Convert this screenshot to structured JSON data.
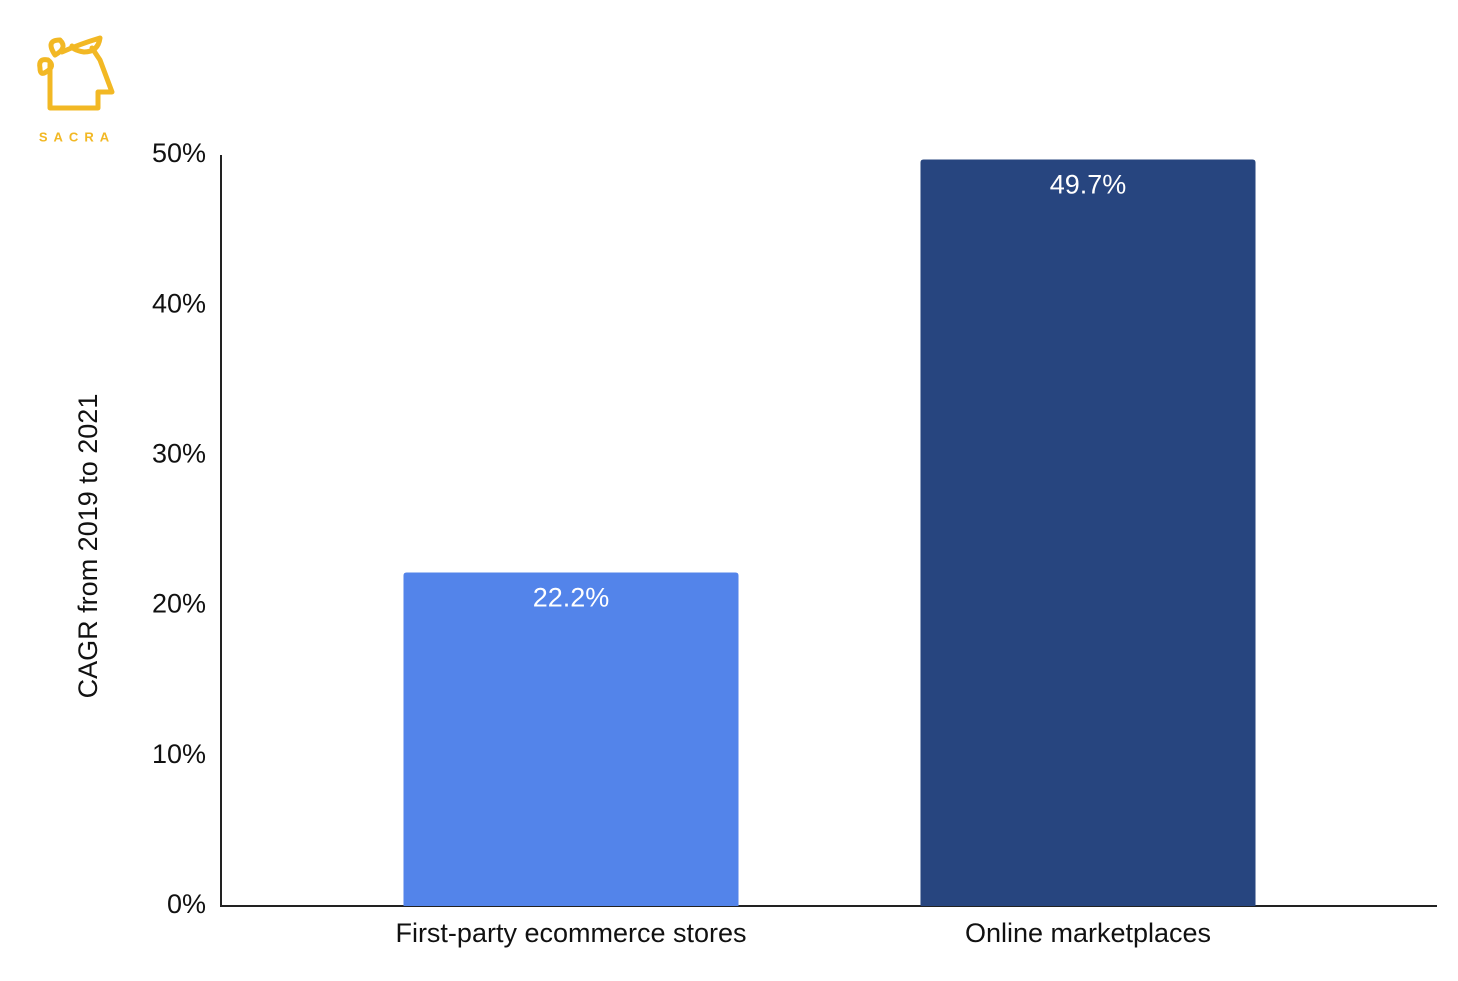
{
  "logo": {
    "text": "SACRA"
  },
  "chart_data": {
    "type": "bar",
    "y_label": "CAGR from 2019 to 2021",
    "categories": [
      "First-party ecommerce stores",
      "Online marketplaces"
    ],
    "values": [
      22.2,
      49.7
    ],
    "value_labels": [
      "22.2%",
      "49.7%"
    ],
    "colors": [
      "#5384ea",
      "#27457f"
    ],
    "ylim": [
      0,
      50
    ],
    "yticks": [
      {
        "value": 0,
        "label": "0%"
      },
      {
        "value": 10,
        "label": "10%"
      },
      {
        "value": 20,
        "label": "20%"
      },
      {
        "value": 30,
        "label": "30%"
      },
      {
        "value": 40,
        "label": "40%"
      },
      {
        "value": 50,
        "label": "50%"
      }
    ],
    "grid": false
  }
}
